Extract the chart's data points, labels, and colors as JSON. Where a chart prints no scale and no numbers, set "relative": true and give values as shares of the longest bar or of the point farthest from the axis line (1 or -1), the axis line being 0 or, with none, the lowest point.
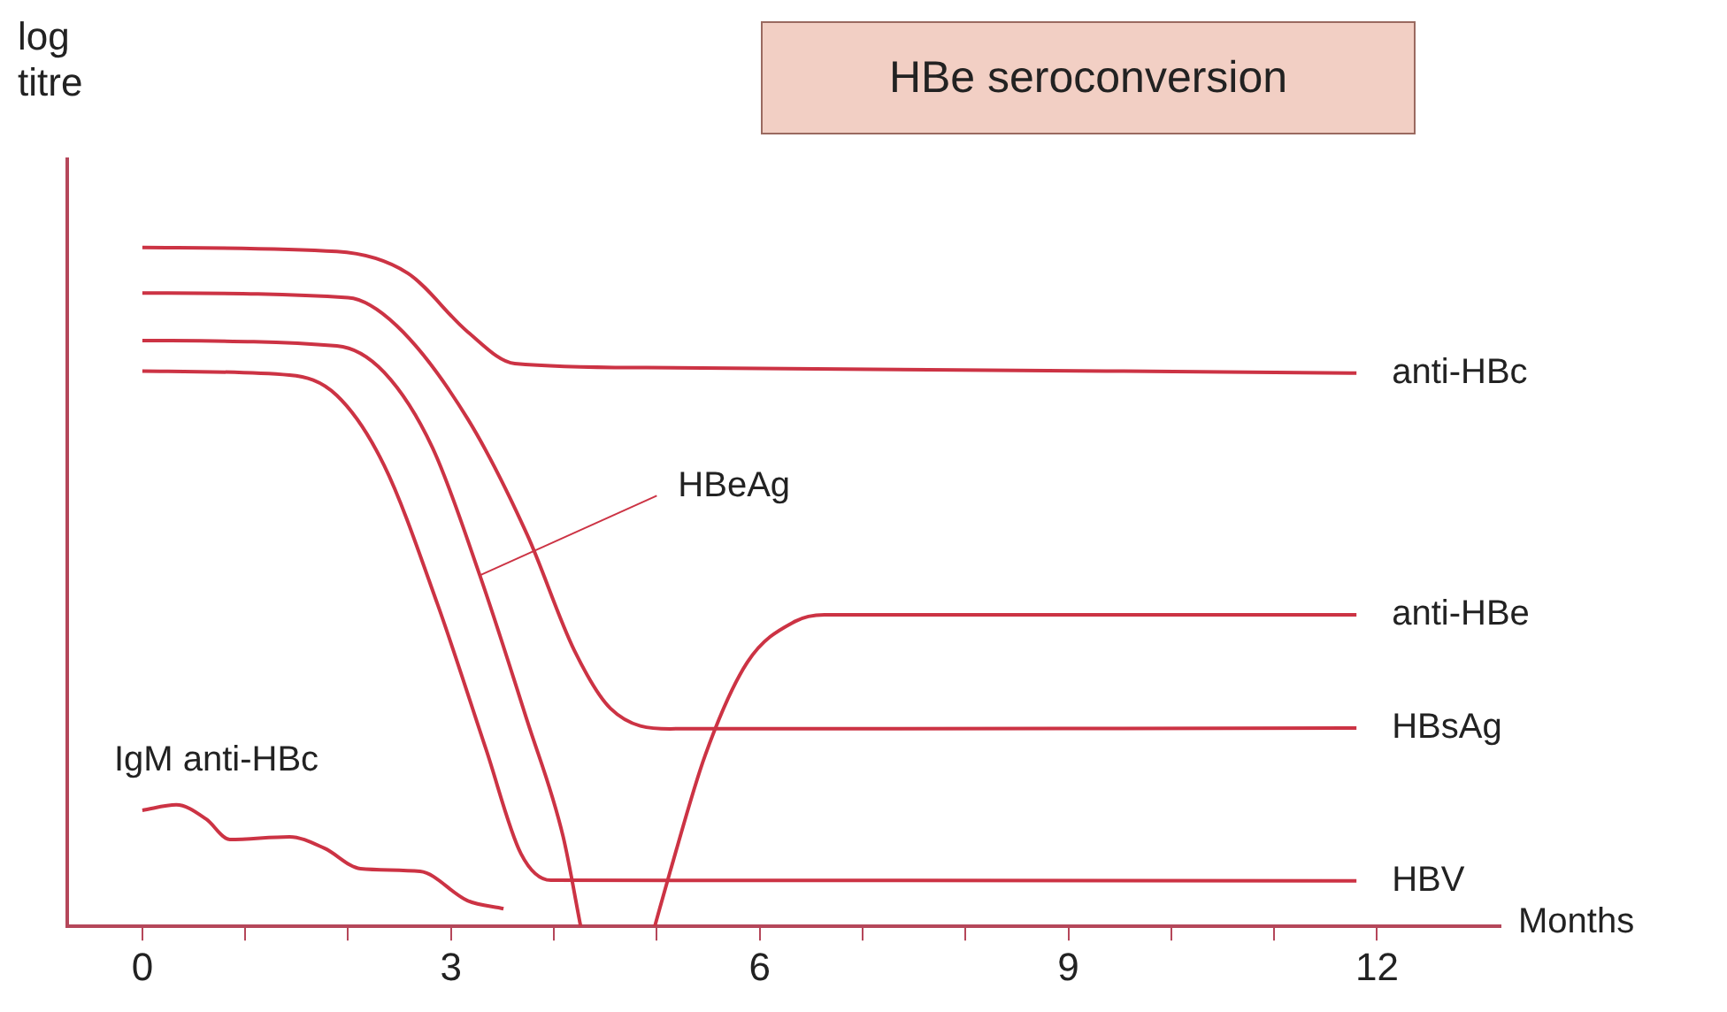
{
  "chart_data": {
    "type": "line",
    "title": "HBe seroconversion",
    "ylabel": "log titre",
    "xlabel": "Months",
    "relative": true,
    "grid": false,
    "legend": false,
    "marker": "none",
    "line_style": "solid",
    "xlim": [
      -0.73,
      13.2
    ],
    "xticks": [
      0,
      {
        "value": 1,
        "label": null
      },
      {
        "value": 2,
        "label": null
      },
      3,
      {
        "value": 4,
        "label": null
      },
      {
        "value": 5,
        "label": null
      },
      6,
      {
        "value": 7,
        "label": null
      },
      {
        "value": 8,
        "label": null
      },
      9,
      {
        "value": 10,
        "label": null
      },
      {
        "value": 11,
        "label": null
      },
      12
    ],
    "series": [
      {
        "name": "anti-HBc",
        "color": "#cc3344",
        "x": [
          0,
          1.89,
          2.58,
          3.16,
          3.62,
          4.9,
          11.8
        ],
        "values": [
          1.0,
          0.994,
          0.962,
          0.876,
          0.829,
          0.823,
          0.815
        ]
      },
      {
        "name": "anti-HBe",
        "color": "#cc3344",
        "x": [
          4.98,
          5.13,
          5.47,
          5.88,
          6.34,
          6.63,
          11.8
        ],
        "values": [
          0,
          0.081,
          0.252,
          0.389,
          0.449,
          0.459,
          0.459
        ]
      },
      {
        "name": "HBsAg",
        "color": "#cc3344",
        "x": [
          0,
          2.0,
          2.47,
          3.16,
          3.74,
          4.2,
          4.55,
          5.13,
          11.8
        ],
        "values": [
          0.933,
          0.926,
          0.885,
          0.748,
          0.577,
          0.406,
          0.321,
          0.291,
          0.292
        ]
      },
      {
        "name": "HBV",
        "color": "#cc3344",
        "x": [
          0,
          1.43,
          1.89,
          2.35,
          2.87,
          3.34,
          3.68,
          3.97,
          11.8
        ],
        "values": [
          0.818,
          0.812,
          0.782,
          0.679,
          0.474,
          0.261,
          0.107,
          0.068,
          0.067
        ]
      },
      {
        "name": "HBeAg",
        "color": "#cc3344",
        "x": [
          0,
          1.89,
          2.35,
          2.82,
          3.28,
          3.74,
          4.09,
          4.26
        ],
        "values": [
          0.863,
          0.855,
          0.816,
          0.705,
          0.517,
          0.303,
          0.132,
          0
        ]
      },
      {
        "name": "IgM anti-HBc",
        "color": "#cc3344",
        "x": [
          0,
          0.33,
          0.62,
          0.85,
          1.43,
          1.77,
          2.12,
          2.7,
          3.16,
          3.51
        ],
        "values": [
          0.171,
          0.179,
          0.158,
          0.128,
          0.132,
          0.115,
          0.085,
          0.081,
          0.038,
          0.026
        ]
      }
    ]
  }
}
